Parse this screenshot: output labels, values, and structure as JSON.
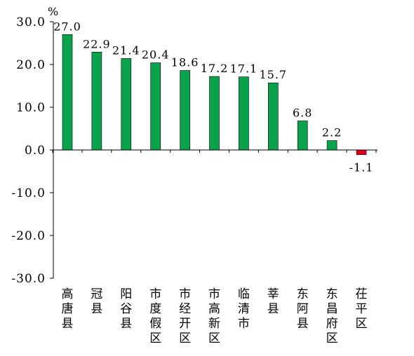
{
  "chart_data": {
    "type": "bar",
    "title": "",
    "xlabel": "",
    "ylabel": "%",
    "ylim": [
      -30,
      30
    ],
    "yticks": [
      "30.0",
      "20.0",
      "10.0",
      "0.0",
      "-10.0",
      "-20.0",
      "-30.0"
    ],
    "grid": false,
    "legend": "none",
    "categories": [
      "高唐县",
      "冠县",
      "阳谷县",
      "市度假区",
      "市经开区",
      "市高新区",
      "临清市",
      "莘县",
      "东阿县",
      "东昌府区",
      "茌平区"
    ],
    "values": [
      27.0,
      22.9,
      21.4,
      20.4,
      18.6,
      17.2,
      17.1,
      15.7,
      6.8,
      2.2,
      -1.1
    ],
    "value_labels": [
      "27.0",
      "22.9",
      "21.4",
      "20.4",
      "18.6",
      "17.2",
      "17.1",
      "15.7",
      "6.8",
      "2.2",
      "-1.1"
    ],
    "colors": {
      "positive": "#0aa24a",
      "negative": "#e0001a",
      "bar_outline": "#000000",
      "axis": "#000000"
    }
  }
}
